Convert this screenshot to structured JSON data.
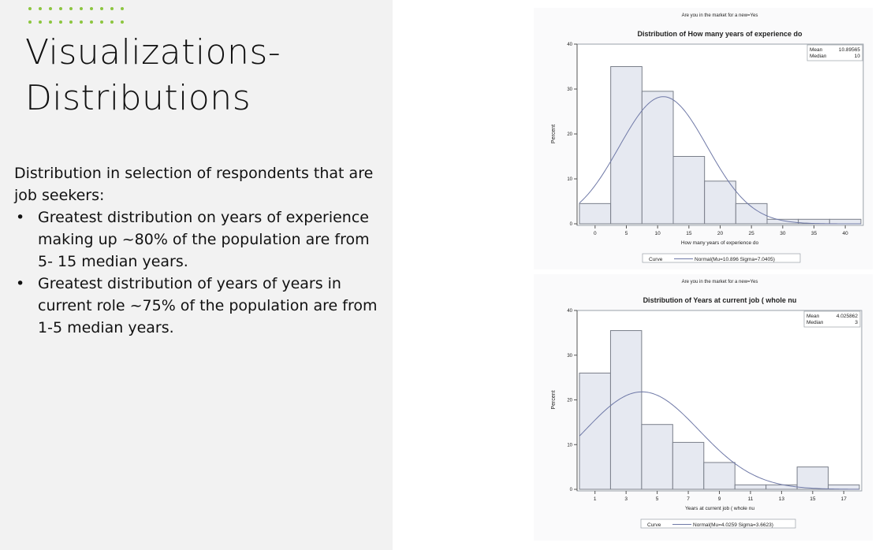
{
  "slide": {
    "title_line1": "Visualizations-",
    "title_line2": "Distributions",
    "intro": "Distribution in selection of respondents that are job seekers:",
    "bullets": [
      "Greatest distribution on years of experience making up ~80% of the population are from 5- 15 median years.",
      "Greatest distribution of years of years in current role ~75% of the population are from 1-5 median years."
    ],
    "bullet_glyph": "•",
    "accent_color": "#8cc63f"
  },
  "chart_data": [
    {
      "type": "bar",
      "panel_header": "Are you in the market for a new=Yes",
      "title": "Distribution of How many years of experience do",
      "xlabel": "How many years of experience do",
      "ylabel": "Percent",
      "ylim": [
        0,
        40
      ],
      "yticks": [
        0,
        10,
        20,
        30,
        40
      ],
      "xlim": [
        -2.5,
        42.5
      ],
      "xticks": [
        0,
        5,
        10,
        15,
        20,
        25,
        30,
        35,
        40
      ],
      "bin_edges": [
        -2.5,
        2.5,
        7.5,
        12.5,
        17.5,
        22.5,
        27.5,
        32.5,
        37.5,
        42.5
      ],
      "values": [
        4.5,
        35,
        29.5,
        15,
        9.5,
        4.5,
        1,
        1,
        1
      ],
      "stats": [
        {
          "label": "Mean",
          "value": "10.89565"
        },
        {
          "label": "Median",
          "value": "10"
        }
      ],
      "curve": {
        "mu": 10.896,
        "sigma": 7.0405,
        "peak": 28.3
      },
      "legend": {
        "title": "Curve",
        "entry": "Normal(Mu=10.896 Sigma=7.0405)"
      },
      "bar_fill": "#e6e9f1",
      "bar_stroke": "#7a7f8a",
      "curve_color": "#6f79a7"
    },
    {
      "type": "bar",
      "panel_header": "Are you in the market for a new=Yes",
      "title": "Distribution of Years at current job ( whole nu",
      "xlabel": "Years at current job ( whole nu",
      "ylabel": "Percent",
      "ylim": [
        0,
        40
      ],
      "yticks": [
        0,
        10,
        20,
        30,
        40
      ],
      "xlim": [
        0,
        18
      ],
      "xticks": [
        1,
        3,
        5,
        7,
        9,
        11,
        13,
        15,
        17
      ],
      "bin_edges": [
        0,
        2,
        4,
        6,
        8,
        10,
        12,
        14,
        16,
        18
      ],
      "values": [
        26,
        35.5,
        14.5,
        10.5,
        6,
        1,
        1,
        5,
        1
      ],
      "stats": [
        {
          "label": "Mean",
          "value": "4.025862"
        },
        {
          "label": "Median",
          "value": "3"
        }
      ],
      "curve": {
        "mu": 4.0259,
        "sigma": 3.6623,
        "peak": 21.8
      },
      "legend": {
        "title": "Curve",
        "entry": "Normal(Mu=4.0259 Sigma=3.6623)"
      },
      "bar_fill": "#e6e9f1",
      "bar_stroke": "#7a7f8a",
      "curve_color": "#6f79a7"
    }
  ]
}
